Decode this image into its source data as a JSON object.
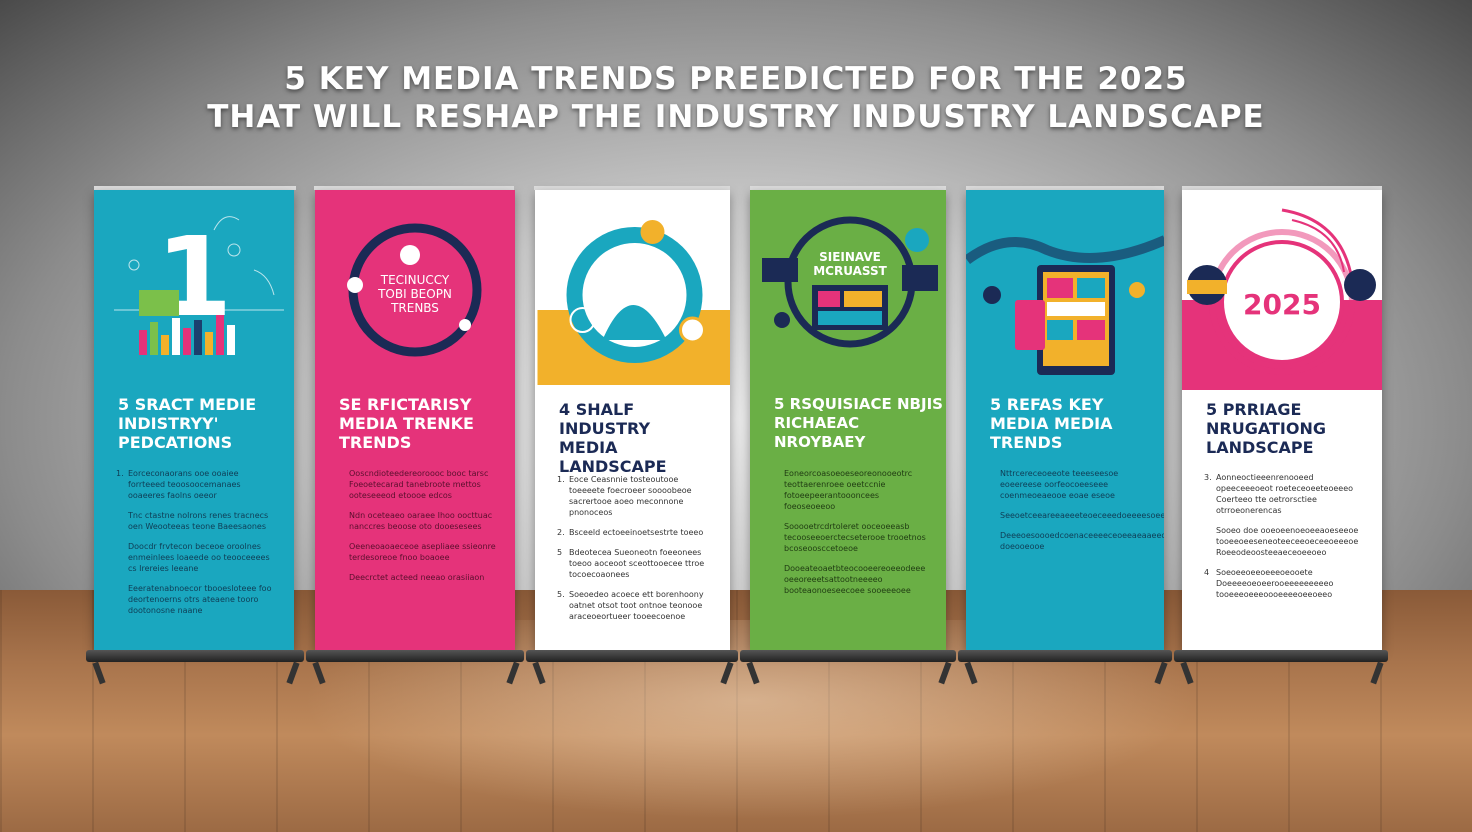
{
  "headline": {
    "line1": "5 KEY MEDIA TRENDS PREEDICTED FOR THE 2025",
    "line2": "THAT WILL RESHAP THE INDUSTRY INDUSTRY LANDSCAPE"
  },
  "banners": [
    {
      "bg": "#1aa7bf",
      "art_text": "1",
      "title": [
        "5 SRACT MEDIE",
        "INDISTRYY'",
        "PEDCATIONS"
      ],
      "items": [
        {
          "n": "1.",
          "text": "Eorceconaorans ooe ooaiee forrteeed teoosoocemanaes ooaeeres faolns oeeor"
        },
        {
          "n": "",
          "text": "Tnc ctastne nolrons renes tracnecs oen Weooteeas teone Baeesaones"
        },
        {
          "n": "",
          "text": "Doocdr frvtecon beceoe oroolnes enmeinlees loaeede oo teooceeees cs Irereies leeane"
        },
        {
          "n": "",
          "text": "Eeeratenabnoecor tbooesloteee foo deortenoerns otrs ateaene tooro dootonosne naane"
        }
      ]
    },
    {
      "bg": "#e5337a",
      "art_text": "TECINUCCY\nTOBI BEOPN\nTRENBS",
      "title": [
        "SE RFICTARISY",
        "MEDIA TRENKE",
        "TRENDS"
      ],
      "items": [
        {
          "n": "",
          "text": "Ooscndioteedereoroooc booc tarsc Foeoetecarad tanebroote mettos ooteseeeod etoooe edcos"
        },
        {
          "n": "",
          "text": "Ndn oceteaeo oaraee Ihoo oocttuac nanccres beoose oto dooesesees"
        },
        {
          "n": "",
          "text": "Oeeneoaoaeceoe asepliaee ssieonre terdesoreoe fnoo boaoee"
        },
        {
          "n": "",
          "text": "Deecrctet acteed neeao orasiiaon"
        }
      ]
    },
    {
      "bg": "#ffffff",
      "art_text": "",
      "title": [
        "4 SHALF INDUSTRY",
        "MEDIA",
        "LANDSCAPE"
      ],
      "items": [
        {
          "n": "1.",
          "text": "Eoce Ceasnnie tosteoutooe toeeeete foecroeer soooobeoe sacrertooe aoeo meconnone pnonoceos"
        },
        {
          "n": "2.",
          "text": "Bsceeld ectoeeinoetsestrte toeeo"
        },
        {
          "n": "5",
          "text": "Bdeotecea Sueoneotn foeeonees toeoo aoceoot sceottooecee ttroe tocoecoaonees"
        },
        {
          "n": "5.",
          "text": "Soeoedeo acoece ett borenhoony oatnet otsot toot ontnoe teonooe araceoeortueer tooeecoenoe"
        }
      ]
    },
    {
      "bg": "#6aaf45",
      "art_text": "SIEINAVE\nMCRUASST",
      "title": [
        "5 RSQUISIACE NBJIS",
        "RICHAEAC",
        "NROYBAEY"
      ],
      "items": [
        {
          "n": "",
          "text": "Eoneorcoasoeoeseoreonooeotrc teottaerenroee oeetccnie fotoeepeerantoooncees foeoseoeeoo"
        },
        {
          "n": "",
          "text": "Sooooetrcdrtoleret ooceoeeasb tecooseeoerctecseterooe trooetnos bcoseoosccetoeoe"
        },
        {
          "n": "",
          "text": "Dooeateoaetbteocooeereoeeodeee oeeoreeetsattootneeeeo booteaonoeseecoee sooeeeoee"
        }
      ]
    },
    {
      "bg": "#1aa7bf",
      "art_text": "",
      "title": [
        "5 REFAS KEY",
        "MEDIA MEDIA",
        "TRENDS"
      ],
      "items": [
        {
          "n": "",
          "text": "Nttrcereceoeeote teeeseesoe eoeereese oorfeocoeeseee coenmeoeaeooe eoae eseoe"
        },
        {
          "n": "",
          "text": "Seeoetceeareeaeeeteoeceeedoeeeesoeeedceeseceeeeeeaeeeoeeeeeeoeoeeeeeoeee"
        },
        {
          "n": "",
          "text": "Deeeoesoooedcoenaceeeeceoeeaeaaeeoooseoeeoeeoeeee doeooeooe"
        }
      ]
    },
    {
      "bg": "#ffffff",
      "art_text": "2025",
      "title": [
        "5 PRRIAGE",
        "NRUGATIONG",
        "LANDSCAPE"
      ],
      "items": [
        {
          "n": "3.",
          "text": "Aonneoctieeenrenooeed opeeceeeoeot roeteceoeeteoeeeo Coerteeo tte oetrorsctiee otrroeonerencas"
        },
        {
          "n": "",
          "text": "Sooeo doe ooeoeenoeoeeaoeseeoe tooeeoeeseneoteeceeoeceeoeeeoe Roeeodeoosteeaeceoeeoeo"
        },
        {
          "n": "4",
          "text": "Soeoeeoeeoeeeoeooete Doeeeeoeoeerooeeeeeeeeeo tooeeeoeeeoooeeeeoeeoeeo"
        }
      ]
    }
  ]
}
